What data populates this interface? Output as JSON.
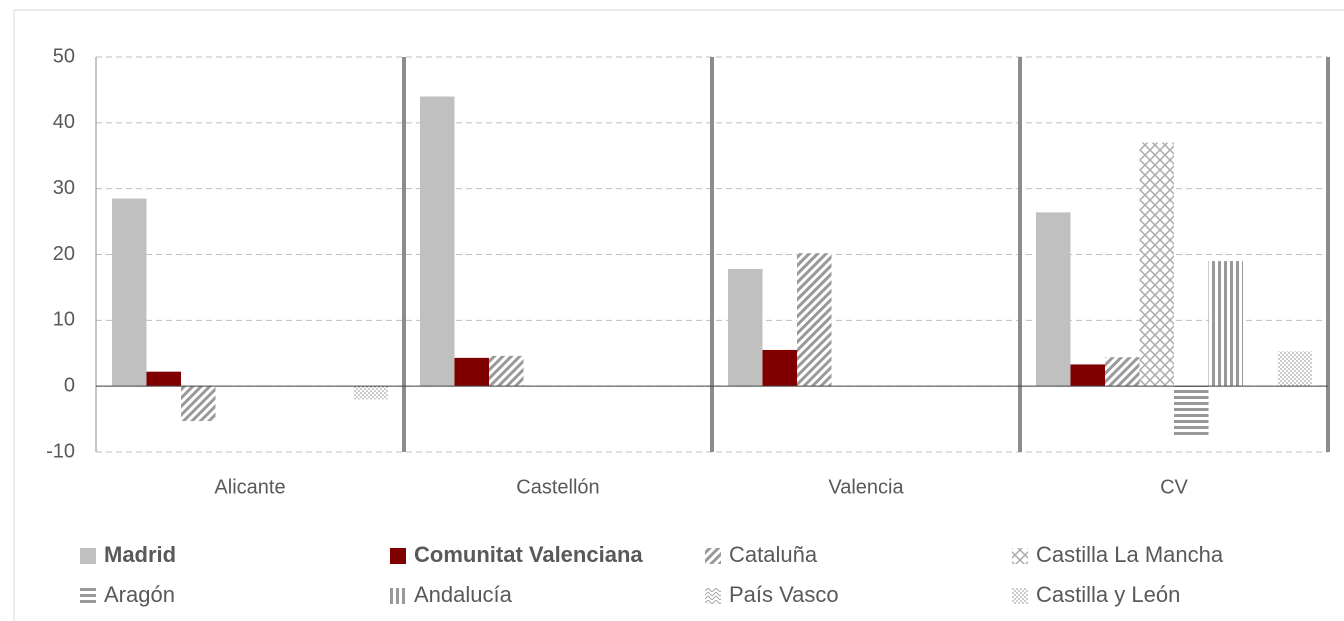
{
  "chart_data": {
    "type": "bar",
    "categories": [
      "Alicante",
      "Castellón",
      "Valencia",
      "CV"
    ],
    "series": [
      {
        "name": "Madrid",
        "color": "#c0c0c0",
        "pattern": "solid",
        "values": [
          28.5,
          44,
          17.8,
          26.4
        ]
      },
      {
        "name": "Comunitat Valenciana",
        "color": "#800000",
        "pattern": "solid",
        "values": [
          2.2,
          4.3,
          5.5,
          3.3
        ]
      },
      {
        "name": "Cataluña",
        "color": "#a6a6a6",
        "pattern": "diagonal",
        "values": [
          -5.3,
          4.6,
          20.2,
          4.4
        ]
      },
      {
        "name": "Castilla La Mancha",
        "color": "#a6a6a6",
        "pattern": "crosshatch",
        "values": [
          null,
          null,
          null,
          37
        ]
      },
      {
        "name": "Aragón",
        "color": "#a6a6a6",
        "pattern": "horizontal",
        "values": [
          null,
          null,
          null,
          -7.5
        ]
      },
      {
        "name": "Andalucía",
        "color": "#a6a6a6",
        "pattern": "vertical",
        "values": [
          null,
          null,
          null,
          19
        ]
      },
      {
        "name": "País Vasco",
        "color": "#a6a6a6",
        "pattern": "zigzag",
        "values": [
          null,
          null,
          null,
          null
        ]
      },
      {
        "name": "Castilla y León",
        "color": "#a6a6a6",
        "pattern": "dots",
        "values": [
          -2,
          null,
          null,
          5.3
        ]
      }
    ],
    "ylim": [
      -10,
      50
    ],
    "yticks": [
      -10,
      0,
      10,
      20,
      30,
      40,
      50
    ],
    "grid": true,
    "legend": "bottom"
  }
}
